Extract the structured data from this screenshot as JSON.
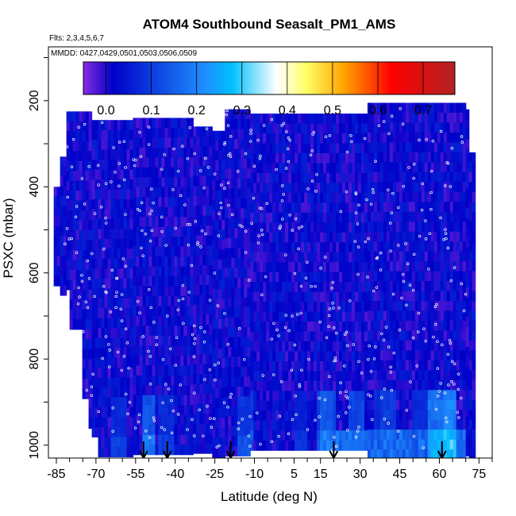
{
  "chart_data": {
    "type": "heatmap",
    "title": "ATOM4 Southbound Seasalt_PM1_AMS",
    "flights_text": "Flts: 2,3,4,5,6,7",
    "dates_text": "MMDD: 0427,0429,0501,0503,0506,0509",
    "xlabel": "Latitude (deg N)",
    "ylabel": "PSXC (mbar)",
    "xlim": [
      -88,
      80
    ],
    "ylim": [
      1030,
      75
    ],
    "x_ticks": [
      -85,
      -70,
      -55,
      -40,
      -25,
      -10,
      5,
      15,
      30,
      45,
      60,
      75
    ],
    "y_ticks": [
      200,
      400,
      600,
      800,
      1000
    ],
    "colorbar": {
      "ticks": [
        "0.0",
        "0.1",
        "0.2",
        "0.3",
        "0.4",
        "0.5",
        "0.6",
        "0.7"
      ],
      "range": [
        -0.05,
        0.77
      ],
      "colors": [
        "#8a2be2",
        "#0000c8",
        "#1e90ff",
        "#00bfff",
        "#ffffff",
        "#ffff66",
        "#ffa500",
        "#ff0000",
        "#b22222"
      ]
    },
    "arrows_lat": [
      -52,
      -43,
      -19,
      20,
      61
    ],
    "surface_enhancements": [
      {
        "lat": -51,
        "value": 0.22
      },
      {
        "lat": -44,
        "value": 0.12
      },
      {
        "lat": -14,
        "value": 0.15
      },
      {
        "lat": 17,
        "value": 0.22
      },
      {
        "lat": 28,
        "value": 0.18
      },
      {
        "lat": 40,
        "value": 0.16
      },
      {
        "lat": 58,
        "value": 0.28
      },
      {
        "lat": 63,
        "value": 0.33
      },
      {
        "lat": 37,
        "value": 0.12
      },
      {
        "lat": -62,
        "value": 0.12
      },
      {
        "lat": -76,
        "value": 0.12
      },
      {
        "lat": 7,
        "value": 0.1
      },
      {
        "lat": 18,
        "value": 0.2
      },
      {
        "lat": 15,
        "value": 0.15
      },
      {
        "lat": 52,
        "value": 0.12
      }
    ],
    "background_value": 0.02
  }
}
